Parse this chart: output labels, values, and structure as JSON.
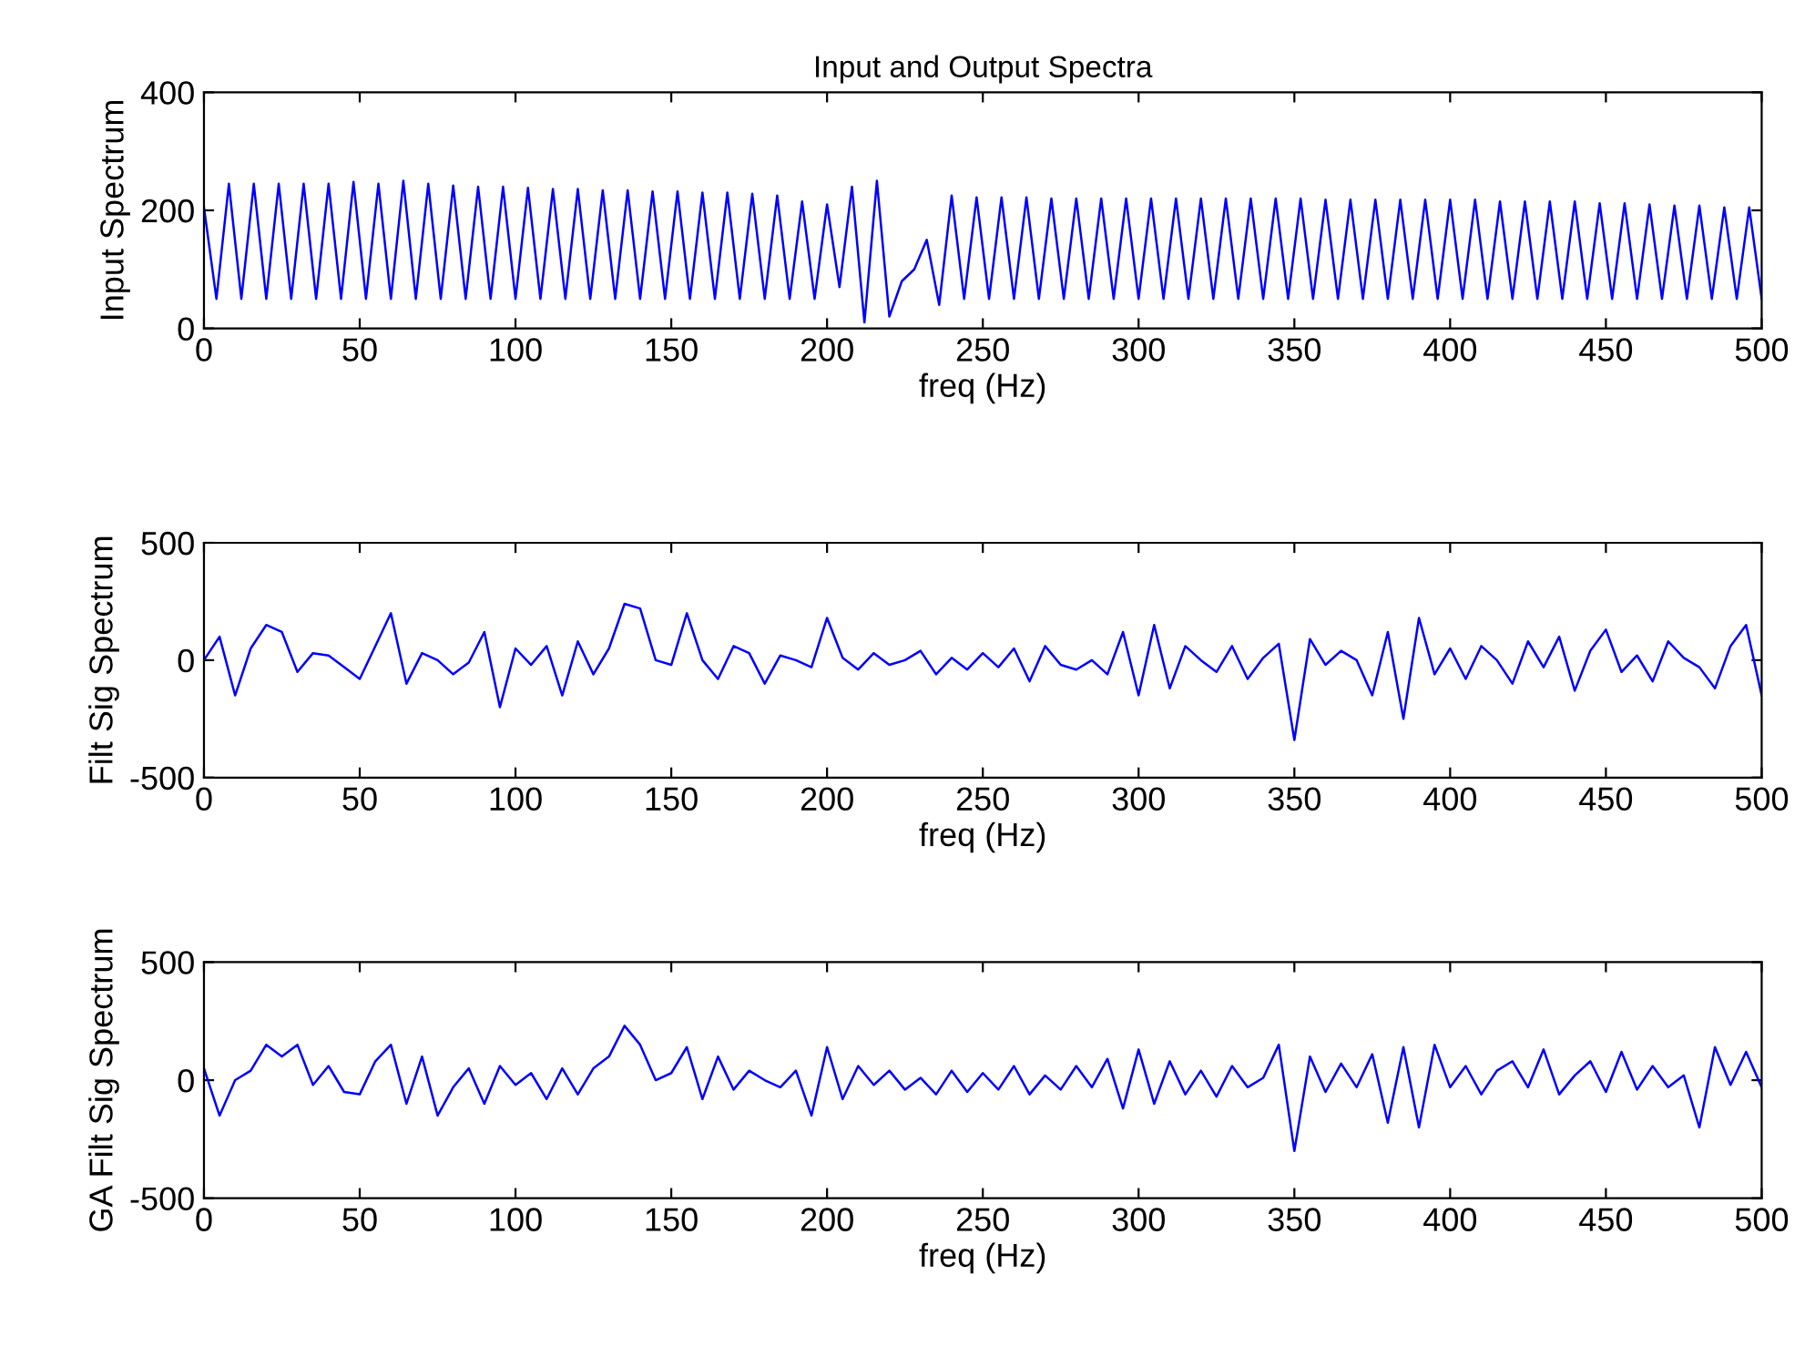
{
  "chart_data": [
    {
      "type": "line",
      "title": "Input and Output Spectra",
      "xlabel": "freq (Hz)",
      "ylabel": "Input Spectrum",
      "xlim": [
        0,
        500
      ],
      "ylim": [
        0,
        400
      ],
      "xticks": [
        0,
        50,
        100,
        150,
        200,
        250,
        300,
        350,
        400,
        450,
        500
      ],
      "yticks": [
        0,
        200,
        400
      ],
      "grid": false,
      "marker": "none",
      "line_style": "solid",
      "series": [
        {
          "color": "#0000ff",
          "x": [
            0,
            4,
            8,
            12,
            16,
            20,
            24,
            28,
            32,
            36,
            40,
            44,
            48,
            52,
            56,
            60,
            64,
            68,
            72,
            76,
            80,
            84,
            88,
            92,
            96,
            100,
            104,
            108,
            112,
            116,
            120,
            124,
            128,
            132,
            136,
            140,
            144,
            148,
            152,
            156,
            160,
            164,
            168,
            172,
            176,
            180,
            184,
            188,
            192,
            196,
            200,
            204,
            208,
            212,
            216,
            220,
            224,
            228,
            232,
            236,
            240,
            244,
            248,
            252,
            256,
            260,
            264,
            268,
            272,
            276,
            280,
            284,
            288,
            292,
            296,
            300,
            304,
            308,
            312,
            316,
            320,
            324,
            328,
            332,
            336,
            340,
            344,
            348,
            352,
            356,
            360,
            364,
            368,
            372,
            376,
            380,
            384,
            388,
            392,
            396,
            400,
            404,
            408,
            412,
            416,
            420,
            424,
            428,
            432,
            436,
            440,
            444,
            448,
            452,
            456,
            460,
            464,
            468,
            472,
            476,
            480,
            484,
            488,
            492,
            496,
            500
          ],
          "values": [
            205,
            50,
            245,
            50,
            245,
            50,
            245,
            50,
            245,
            50,
            245,
            50,
            248,
            50,
            245,
            50,
            250,
            50,
            245,
            50,
            242,
            50,
            240,
            50,
            240,
            50,
            238,
            50,
            236,
            50,
            236,
            50,
            234,
            50,
            234,
            50,
            232,
            50,
            232,
            50,
            230,
            50,
            230,
            50,
            228,
            50,
            225,
            50,
            215,
            50,
            210,
            70,
            240,
            10,
            250,
            20,
            80,
            100,
            150,
            40,
            225,
            50,
            222,
            50,
            222,
            50,
            222,
            50,
            220,
            50,
            220,
            50,
            220,
            50,
            220,
            50,
            220,
            50,
            220,
            50,
            220,
            50,
            220,
            50,
            220,
            50,
            220,
            50,
            220,
            50,
            218,
            50,
            218,
            50,
            218,
            50,
            218,
            50,
            218,
            50,
            218,
            50,
            218,
            50,
            215,
            50,
            215,
            50,
            215,
            50,
            215,
            50,
            212,
            50,
            212,
            50,
            210,
            50,
            208,
            50,
            208,
            50,
            205,
            50,
            205,
            50
          ]
        }
      ]
    },
    {
      "type": "line",
      "xlabel": "freq (Hz)",
      "ylabel": "Filt Sig Spectrum",
      "xlim": [
        0,
        500
      ],
      "ylim": [
        -500,
        500
      ],
      "xticks": [
        0,
        50,
        100,
        150,
        200,
        250,
        300,
        350,
        400,
        450,
        500
      ],
      "yticks": [
        -500,
        0,
        500
      ],
      "grid": false,
      "marker": "none",
      "line_style": "solid",
      "series": [
        {
          "color": "#0000ff",
          "x": [
            0,
            5,
            10,
            15,
            20,
            25,
            30,
            35,
            40,
            45,
            50,
            55,
            60,
            65,
            70,
            75,
            80,
            85,
            90,
            95,
            100,
            105,
            110,
            115,
            120,
            125,
            130,
            135,
            140,
            145,
            150,
            155,
            160,
            165,
            170,
            175,
            180,
            185,
            190,
            195,
            200,
            205,
            210,
            215,
            220,
            225,
            230,
            235,
            240,
            245,
            250,
            255,
            260,
            265,
            270,
            275,
            280,
            285,
            290,
            295,
            300,
            305,
            310,
            315,
            320,
            325,
            330,
            335,
            340,
            345,
            350,
            355,
            360,
            365,
            370,
            375,
            380,
            385,
            390,
            395,
            400,
            405,
            410,
            415,
            420,
            425,
            430,
            435,
            440,
            445,
            450,
            455,
            460,
            465,
            470,
            475,
            480,
            485,
            490,
            495,
            500
          ],
          "values": [
            0,
            100,
            -150,
            50,
            150,
            120,
            -50,
            30,
            20,
            -30,
            -80,
            60,
            200,
            -100,
            30,
            0,
            -60,
            -10,
            120,
            -200,
            50,
            -20,
            60,
            -150,
            80,
            -60,
            50,
            240,
            220,
            0,
            -20,
            200,
            0,
            -80,
            60,
            30,
            -100,
            20,
            0,
            -30,
            180,
            10,
            -40,
            30,
            -20,
            0,
            40,
            -60,
            10,
            -40,
            30,
            -30,
            50,
            -90,
            60,
            -20,
            -40,
            0,
            -60,
            120,
            -150,
            150,
            -120,
            60,
            0,
            -50,
            60,
            -80,
            10,
            70,
            -340,
            90,
            -20,
            40,
            0,
            -150,
            120,
            -250,
            180,
            -60,
            50,
            -80,
            60,
            0,
            -100,
            80,
            -30,
            100,
            -130,
            40,
            130,
            -50,
            20,
            -90,
            80,
            10,
            -30,
            -120,
            60,
            150,
            -150
          ]
        }
      ]
    },
    {
      "type": "line",
      "xlabel": "freq (Hz)",
      "ylabel": "GA Filt Sig Spectrum",
      "xlim": [
        0,
        500
      ],
      "ylim": [
        -500,
        500
      ],
      "xticks": [
        0,
        50,
        100,
        150,
        200,
        250,
        300,
        350,
        400,
        450,
        500
      ],
      "yticks": [
        -500,
        0,
        500
      ],
      "grid": false,
      "marker": "none",
      "line_style": "solid",
      "series": [
        {
          "color": "#0000ff",
          "x": [
            0,
            5,
            10,
            15,
            20,
            25,
            30,
            35,
            40,
            45,
            50,
            55,
            60,
            65,
            70,
            75,
            80,
            85,
            90,
            95,
            100,
            105,
            110,
            115,
            120,
            125,
            130,
            135,
            140,
            145,
            150,
            155,
            160,
            165,
            170,
            175,
            180,
            185,
            190,
            195,
            200,
            205,
            210,
            215,
            220,
            225,
            230,
            235,
            240,
            245,
            250,
            255,
            260,
            265,
            270,
            275,
            280,
            285,
            290,
            295,
            300,
            305,
            310,
            315,
            320,
            325,
            330,
            335,
            340,
            345,
            350,
            355,
            360,
            365,
            370,
            375,
            380,
            385,
            390,
            395,
            400,
            405,
            410,
            415,
            420,
            425,
            430,
            435,
            440,
            445,
            450,
            455,
            460,
            465,
            470,
            475,
            480,
            485,
            490,
            495,
            500
          ],
          "values": [
            50,
            -150,
            0,
            40,
            150,
            100,
            150,
            -20,
            60,
            -50,
            -60,
            80,
            150,
            -100,
            100,
            -150,
            -30,
            50,
            -100,
            60,
            -20,
            30,
            -80,
            50,
            -60,
            50,
            100,
            230,
            150,
            0,
            30,
            140,
            -80,
            100,
            -40,
            40,
            0,
            -30,
            40,
            -150,
            140,
            -80,
            60,
            -20,
            40,
            -40,
            10,
            -60,
            40,
            -50,
            30,
            -40,
            60,
            -60,
            20,
            -40,
            60,
            -30,
            90,
            -120,
            130,
            -100,
            80,
            -60,
            40,
            -70,
            60,
            -30,
            10,
            150,
            -300,
            100,
            -50,
            70,
            -30,
            110,
            -180,
            140,
            -200,
            150,
            -30,
            60,
            -60,
            40,
            80,
            -30,
            130,
            -60,
            20,
            80,
            -50,
            120,
            -40,
            60,
            -30,
            20,
            -200,
            140,
            -20,
            120,
            -30
          ]
        }
      ]
    }
  ]
}
